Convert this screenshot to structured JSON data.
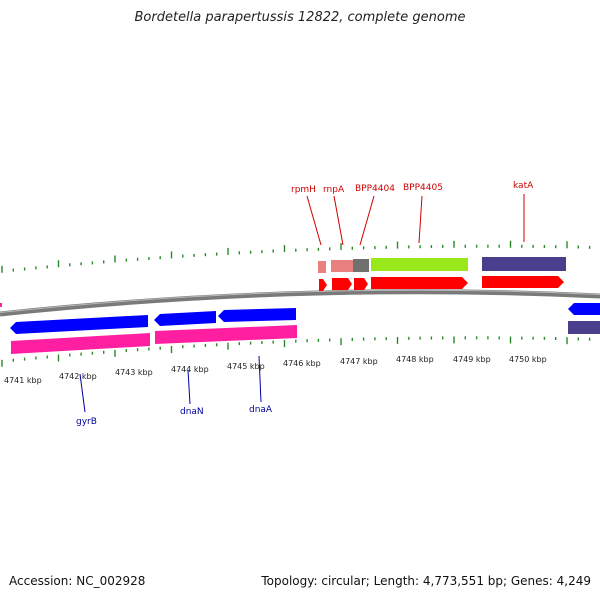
{
  "title": "Bordetella parapertussis 12822, complete genome",
  "footer": {
    "accession": "Accession: NC_002928",
    "summary": "Topology: circular; Length: 4,773,551 bp; Genes: 4,249"
  },
  "colors": {
    "backbone": "#7a7a7a",
    "tick": "#2a8a2a",
    "gene_label_top": "#d00000",
    "gene_label_bottom": "#0000a0",
    "cds_forward": "#ff0000",
    "cds_reverse": "#0000ff",
    "reverse_track": "#ff1fa0",
    "purple": "#4a3f8c",
    "pink": "#e88080",
    "gray": "#707070",
    "lime": "#99e81a"
  },
  "axis": {
    "labels": [
      "4741 kbp",
      "4742 kbp",
      "4743 kbp",
      "4744 kbp",
      "4745 kbp",
      "4746 kbp",
      "4747 kbp",
      "4748 kbp",
      "4749 kbp",
      "4750 kbp"
    ]
  },
  "gene_labels_top": [
    "rpmH",
    "rnpA",
    "BPP4404",
    "BPP4405",
    "katA"
  ],
  "gene_labels_bottom": [
    "gyrB",
    "dnaN",
    "dnaA"
  ]
}
